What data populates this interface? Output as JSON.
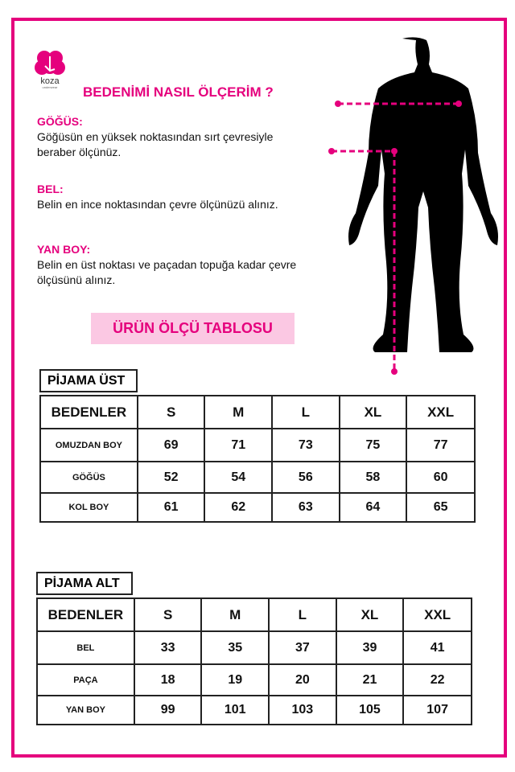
{
  "brand": {
    "name": "koza",
    "tagline": "underwear",
    "color": "#e5007d"
  },
  "title": "BEDENİMİ NASIL ÖLÇERİM ?",
  "sections": [
    {
      "heading": "GÖĞÜS:",
      "text": "Göğüsün en yüksek noktasından sırt çevresiyle beraber ölçünüz."
    },
    {
      "heading": "BEL:",
      "text": "Belin en ince noktasından çevre ölçünüzü alınız."
    },
    {
      "heading": "YAN BOY:",
      "text": "Belin en üst noktası ve paçadan topuğa kadar çevre ölçüsünü alınız."
    }
  ],
  "table_button": "ÜRÜN ÖLÇÜ TABLOSU",
  "tables": [
    {
      "caption": "PİJAMA ÜST",
      "header": [
        "BEDENLER",
        "S",
        "M",
        "L",
        "XL",
        "XXL"
      ],
      "rows": [
        [
          "OMUZDAN BOY",
          "69",
          "71",
          "73",
          "75",
          "77"
        ],
        [
          "GÖĞÜS",
          "52",
          "54",
          "56",
          "58",
          "60"
        ],
        [
          "KOL BOY",
          "61",
          "62",
          "63",
          "64",
          "65"
        ]
      ]
    },
    {
      "caption": "PİJAMA ALT",
      "header": [
        "BEDENLER",
        "S",
        "M",
        "L",
        "XL",
        "XXL"
      ],
      "rows": [
        [
          "BEL",
          "33",
          "35",
          "37",
          "39",
          "41"
        ],
        [
          "PAÇA",
          "18",
          "19",
          "20",
          "21",
          "22"
        ],
        [
          "YAN BOY",
          "99",
          "101",
          "103",
          "105",
          "107"
        ]
      ]
    }
  ]
}
